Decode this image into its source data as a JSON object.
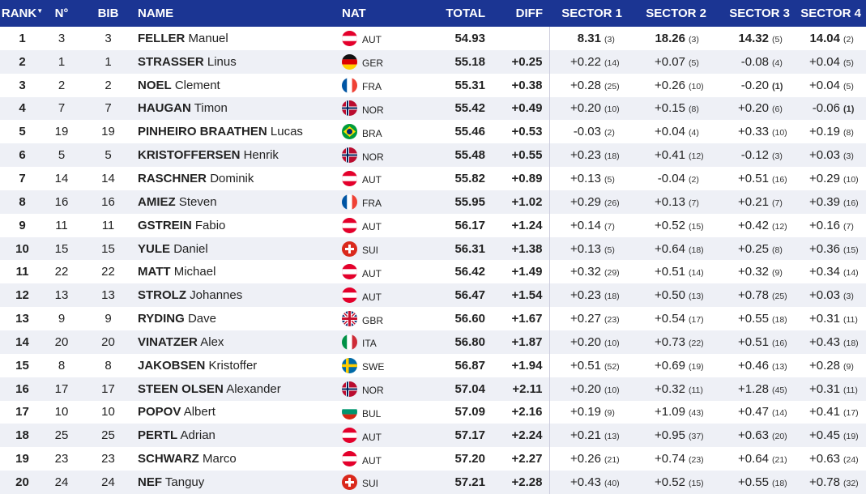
{
  "header": {
    "rank": "RANK",
    "rank_sort_icon": "sort-down-icon",
    "no": "N°",
    "bib": "BIB",
    "name": "NAME",
    "nat": "NAT",
    "total": "TOTAL",
    "diff": "DIFF",
    "s1": "SECTOR 1",
    "s2": "SECTOR 2",
    "s3": "SECTOR 3",
    "s4": "SECTOR 4"
  },
  "colors": {
    "header_bg": "#1b3593",
    "row_alt": "#eef0f6"
  },
  "rows": [
    {
      "rank": "1",
      "no": "3",
      "bib": "3",
      "last": "FELLER",
      "first": "Manuel",
      "nat": "AUT",
      "total": "54.93",
      "diff": "",
      "s": [
        [
          "8.31",
          "(3)"
        ],
        [
          "18.26",
          "(3)"
        ],
        [
          "14.32",
          "(5)"
        ],
        [
          "14.04",
          "(2)"
        ]
      ]
    },
    {
      "rank": "2",
      "no": "1",
      "bib": "1",
      "last": "STRASSER",
      "first": "Linus",
      "nat": "GER",
      "total": "55.18",
      "diff": "+0.25",
      "s": [
        [
          "+0.22",
          "(14)"
        ],
        [
          "+0.07",
          "(5)"
        ],
        [
          "-0.08",
          "(4)"
        ],
        [
          "+0.04",
          "(5)"
        ]
      ]
    },
    {
      "rank": "3",
      "no": "2",
      "bib": "2",
      "last": "NOEL",
      "first": "Clement",
      "nat": "FRA",
      "total": "55.31",
      "diff": "+0.38",
      "s": [
        [
          "+0.28",
          "(25)"
        ],
        [
          "+0.26",
          "(10)"
        ],
        [
          "-0.20",
          "(1)"
        ],
        [
          "+0.04",
          "(5)"
        ]
      ]
    },
    {
      "rank": "4",
      "no": "7",
      "bib": "7",
      "last": "HAUGAN",
      "first": "Timon",
      "nat": "NOR",
      "total": "55.42",
      "diff": "+0.49",
      "s": [
        [
          "+0.20",
          "(10)"
        ],
        [
          "+0.15",
          "(8)"
        ],
        [
          "+0.20",
          "(6)"
        ],
        [
          "-0.06",
          "(1)"
        ]
      ]
    },
    {
      "rank": "5",
      "no": "19",
      "bib": "19",
      "last": "PINHEIRO BRAATHEN",
      "first": "Lucas",
      "nat": "BRA",
      "total": "55.46",
      "diff": "+0.53",
      "s": [
        [
          "-0.03",
          "(2)"
        ],
        [
          "+0.04",
          "(4)"
        ],
        [
          "+0.33",
          "(10)"
        ],
        [
          "+0.19",
          "(8)"
        ]
      ]
    },
    {
      "rank": "6",
      "no": "5",
      "bib": "5",
      "last": "KRISTOFFERSEN",
      "first": "Henrik",
      "nat": "NOR",
      "total": "55.48",
      "diff": "+0.55",
      "s": [
        [
          "+0.23",
          "(18)"
        ],
        [
          "+0.41",
          "(12)"
        ],
        [
          "-0.12",
          "(3)"
        ],
        [
          "+0.03",
          "(3)"
        ]
      ]
    },
    {
      "rank": "7",
      "no": "14",
      "bib": "14",
      "last": "RASCHNER",
      "first": "Dominik",
      "nat": "AUT",
      "total": "55.82",
      "diff": "+0.89",
      "s": [
        [
          "+0.13",
          "(5)"
        ],
        [
          "-0.04",
          "(2)"
        ],
        [
          "+0.51",
          "(16)"
        ],
        [
          "+0.29",
          "(10)"
        ]
      ]
    },
    {
      "rank": "8",
      "no": "16",
      "bib": "16",
      "last": "AMIEZ",
      "first": "Steven",
      "nat": "FRA",
      "total": "55.95",
      "diff": "+1.02",
      "s": [
        [
          "+0.29",
          "(26)"
        ],
        [
          "+0.13",
          "(7)"
        ],
        [
          "+0.21",
          "(7)"
        ],
        [
          "+0.39",
          "(16)"
        ]
      ]
    },
    {
      "rank": "9",
      "no": "11",
      "bib": "11",
      "last": "GSTREIN",
      "first": "Fabio",
      "nat": "AUT",
      "total": "56.17",
      "diff": "+1.24",
      "s": [
        [
          "+0.14",
          "(7)"
        ],
        [
          "+0.52",
          "(15)"
        ],
        [
          "+0.42",
          "(12)"
        ],
        [
          "+0.16",
          "(7)"
        ]
      ]
    },
    {
      "rank": "10",
      "no": "15",
      "bib": "15",
      "last": "YULE",
      "first": "Daniel",
      "nat": "SUI",
      "total": "56.31",
      "diff": "+1.38",
      "s": [
        [
          "+0.13",
          "(5)"
        ],
        [
          "+0.64",
          "(18)"
        ],
        [
          "+0.25",
          "(8)"
        ],
        [
          "+0.36",
          "(15)"
        ]
      ]
    },
    {
      "rank": "11",
      "no": "22",
      "bib": "22",
      "last": "MATT",
      "first": "Michael",
      "nat": "AUT",
      "total": "56.42",
      "diff": "+1.49",
      "s": [
        [
          "+0.32",
          "(29)"
        ],
        [
          "+0.51",
          "(14)"
        ],
        [
          "+0.32",
          "(9)"
        ],
        [
          "+0.34",
          "(14)"
        ]
      ]
    },
    {
      "rank": "12",
      "no": "13",
      "bib": "13",
      "last": "STROLZ",
      "first": "Johannes",
      "nat": "AUT",
      "total": "56.47",
      "diff": "+1.54",
      "s": [
        [
          "+0.23",
          "(18)"
        ],
        [
          "+0.50",
          "(13)"
        ],
        [
          "+0.78",
          "(25)"
        ],
        [
          "+0.03",
          "(3)"
        ]
      ]
    },
    {
      "rank": "13",
      "no": "9",
      "bib": "9",
      "last": "RYDING",
      "first": "Dave",
      "nat": "GBR",
      "total": "56.60",
      "diff": "+1.67",
      "s": [
        [
          "+0.27",
          "(23)"
        ],
        [
          "+0.54",
          "(17)"
        ],
        [
          "+0.55",
          "(18)"
        ],
        [
          "+0.31",
          "(11)"
        ]
      ]
    },
    {
      "rank": "14",
      "no": "20",
      "bib": "20",
      "last": "VINATZER",
      "first": "Alex",
      "nat": "ITA",
      "total": "56.80",
      "diff": "+1.87",
      "s": [
        [
          "+0.20",
          "(10)"
        ],
        [
          "+0.73",
          "(22)"
        ],
        [
          "+0.51",
          "(16)"
        ],
        [
          "+0.43",
          "(18)"
        ]
      ]
    },
    {
      "rank": "15",
      "no": "8",
      "bib": "8",
      "last": "JAKOBSEN",
      "first": "Kristoffer",
      "nat": "SWE",
      "total": "56.87",
      "diff": "+1.94",
      "s": [
        [
          "+0.51",
          "(52)"
        ],
        [
          "+0.69",
          "(19)"
        ],
        [
          "+0.46",
          "(13)"
        ],
        [
          "+0.28",
          "(9)"
        ]
      ]
    },
    {
      "rank": "16",
      "no": "17",
      "bib": "17",
      "last": "STEEN OLSEN",
      "first": "Alexander",
      "nat": "NOR",
      "total": "57.04",
      "diff": "+2.11",
      "s": [
        [
          "+0.20",
          "(10)"
        ],
        [
          "+0.32",
          "(11)"
        ],
        [
          "+1.28",
          "(45)"
        ],
        [
          "+0.31",
          "(11)"
        ]
      ]
    },
    {
      "rank": "17",
      "no": "10",
      "bib": "10",
      "last": "POPOV",
      "first": "Albert",
      "nat": "BUL",
      "total": "57.09",
      "diff": "+2.16",
      "s": [
        [
          "+0.19",
          "(9)"
        ],
        [
          "+1.09",
          "(43)"
        ],
        [
          "+0.47",
          "(14)"
        ],
        [
          "+0.41",
          "(17)"
        ]
      ]
    },
    {
      "rank": "18",
      "no": "25",
      "bib": "25",
      "last": "PERTL",
      "first": "Adrian",
      "nat": "AUT",
      "total": "57.17",
      "diff": "+2.24",
      "s": [
        [
          "+0.21",
          "(13)"
        ],
        [
          "+0.95",
          "(37)"
        ],
        [
          "+0.63",
          "(20)"
        ],
        [
          "+0.45",
          "(19)"
        ]
      ]
    },
    {
      "rank": "19",
      "no": "23",
      "bib": "23",
      "last": "SCHWARZ",
      "first": "Marco",
      "nat": "AUT",
      "total": "57.20",
      "diff": "+2.27",
      "s": [
        [
          "+0.26",
          "(21)"
        ],
        [
          "+0.74",
          "(23)"
        ],
        [
          "+0.64",
          "(21)"
        ],
        [
          "+0.63",
          "(24)"
        ]
      ]
    },
    {
      "rank": "20",
      "no": "24",
      "bib": "24",
      "last": "NEF",
      "first": "Tanguy",
      "nat": "SUI",
      "total": "57.21",
      "diff": "+2.28",
      "s": [
        [
          "+0.43",
          "(40)"
        ],
        [
          "+0.52",
          "(15)"
        ],
        [
          "+0.55",
          "(18)"
        ],
        [
          "+0.78",
          "(32)"
        ]
      ]
    }
  ]
}
